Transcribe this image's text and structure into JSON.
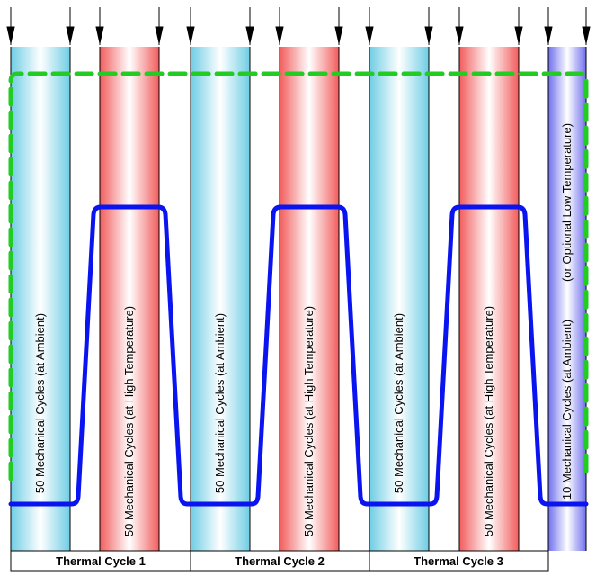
{
  "columns": [
    {
      "id": "amb1",
      "label": "50 Mechanical Cycles (at Ambient)",
      "kind": "ambient"
    },
    {
      "id": "hot1",
      "label": "50 Mechanical Cycles (at High Temperature)",
      "kind": "hot"
    },
    {
      "id": "amb2",
      "label": "50 Mechanical Cycles (at Ambient)",
      "kind": "ambient"
    },
    {
      "id": "hot2",
      "label": "50 Mechanical Cycles (at High Temperature)",
      "kind": "hot"
    },
    {
      "id": "amb3",
      "label": "50 Mechanical Cycles (at Ambient)",
      "kind": "ambient"
    },
    {
      "id": "hot3",
      "label": "50 Mechanical Cycles (at High Temperature)",
      "kind": "hot"
    },
    {
      "id": "final",
      "label": "10 Mechanical Cycles (at Ambient)",
      "label2": "(or Optional Low Temperature)",
      "kind": "low"
    }
  ],
  "thermal_cycles": [
    {
      "label": "Thermal Cycle 1"
    },
    {
      "label": "Thermal Cycle 2"
    },
    {
      "label": "Thermal Cycle 3"
    }
  ],
  "colors": {
    "ambient_edge": "#6fcde4",
    "hot_edge": "#f25c5c",
    "low_edge": "#7070ee",
    "temperature_profile": "#0a14f0",
    "envelope": "#22cc22"
  }
}
